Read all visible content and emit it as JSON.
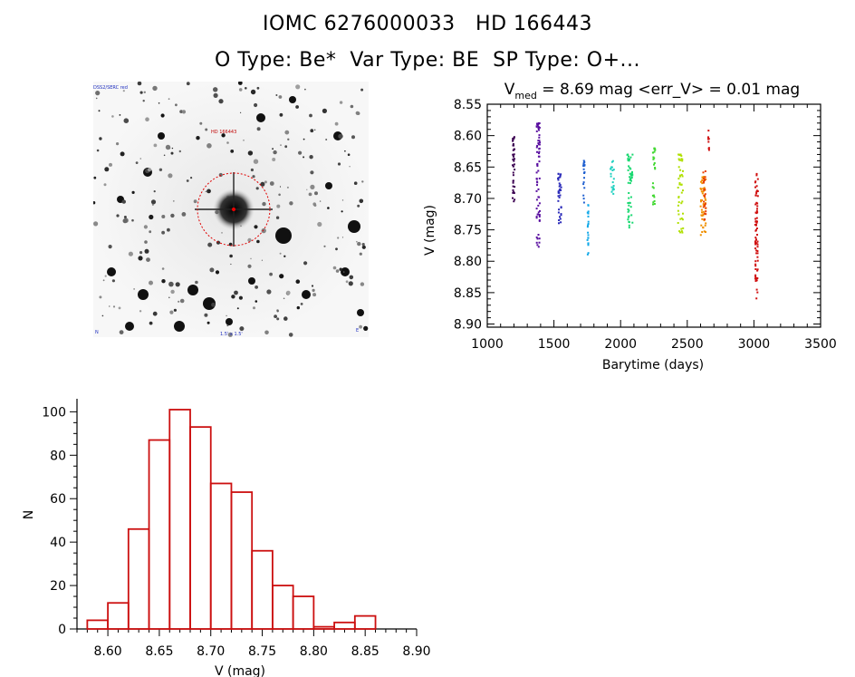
{
  "header": {
    "line1": "IOMC 6276000033   HD 166443",
    "line2": "O Type: Be*  Var Type: BE  SP Type: O+..."
  },
  "sky_image": {
    "label_top_left": "DSS2/SERC red",
    "label_target": "HD 166443",
    "label_bottom_center": "1.5' x 1.5'",
    "label_bottom_left": "N",
    "label_bottom_right": "E"
  },
  "chart_data": [
    {
      "type": "scatter",
      "title_prefix": "V",
      "title_sub": "med",
      "title_rest": " = 8.69 mag <err_V> = 0.01 mag",
      "xlabel": "Barytime (days)",
      "ylabel": "V (mag)",
      "xlim": [
        1000,
        3500
      ],
      "ylim": [
        8.905,
        8.55
      ],
      "xticks": [
        1000,
        1500,
        2000,
        2500,
        3000,
        3500
      ],
      "yticks": [
        8.55,
        8.6,
        8.65,
        8.7,
        8.75,
        8.8,
        8.85,
        8.9
      ],
      "ytick_labels": [
        "8.55",
        "8.60",
        "8.65",
        "8.70",
        "8.75",
        "8.80",
        "8.85",
        "8.90"
      ],
      "clusters": [
        {
          "x": [
            1190,
            1205
          ],
          "y": [
            8.6,
            8.71
          ],
          "color": "#3a0050",
          "n": 40
        },
        {
          "x": [
            1370,
            1395
          ],
          "y": [
            8.58,
            8.785
          ],
          "color": "#5a10a0",
          "n": 70
        },
        {
          "x": [
            1530,
            1555
          ],
          "y": [
            8.66,
            8.74
          ],
          "color": "#2828b8",
          "n": 35
        },
        {
          "x": [
            1720,
            1730
          ],
          "y": [
            8.64,
            8.71
          ],
          "color": "#2060d0",
          "n": 20
        },
        {
          "x": [
            1750,
            1760
          ],
          "y": [
            8.71,
            8.8
          ],
          "color": "#10a8e8",
          "n": 20
        },
        {
          "x": [
            1925,
            1950
          ],
          "y": [
            8.64,
            8.7
          ],
          "color": "#20d0c0",
          "n": 20
        },
        {
          "x": [
            2050,
            2090
          ],
          "y": [
            8.63,
            8.76
          ],
          "color": "#18d870",
          "n": 50
        },
        {
          "x": [
            2240,
            2260
          ],
          "y": [
            8.62,
            8.71
          ],
          "color": "#40d830",
          "n": 25
        },
        {
          "x": [
            2430,
            2470
          ],
          "y": [
            8.63,
            8.76
          ],
          "color": "#b0e000",
          "n": 45
        },
        {
          "x": [
            2600,
            2640
          ],
          "y": [
            8.665,
            8.76
          ],
          "color": "#f09000",
          "n": 50
        },
        {
          "x": [
            2620,
            2640
          ],
          "y": [
            8.655,
            8.74
          ],
          "color": "#e84000",
          "n": 25
        },
        {
          "x": [
            2655,
            2665
          ],
          "y": [
            8.59,
            8.63
          ],
          "color": "#d01010",
          "n": 8
        },
        {
          "x": [
            3010,
            3030
          ],
          "y": [
            8.66,
            8.86
          ],
          "color": "#d01010",
          "n": 70
        }
      ]
    },
    {
      "type": "bar",
      "xlabel": "V (mag)",
      "ylabel": "N",
      "xlim": [
        8.57,
        8.9
      ],
      "ylim": [
        0,
        106
      ],
      "bin_width": 0.02,
      "bin_starts": [
        8.58,
        8.6,
        8.62,
        8.64,
        8.66,
        8.68,
        8.7,
        8.72,
        8.74,
        8.76,
        8.78,
        8.8,
        8.82,
        8.84
      ],
      "values": [
        4,
        12,
        46,
        87,
        101,
        93,
        67,
        63,
        36,
        20,
        15,
        1,
        3,
        6
      ],
      "xticks": [
        8.6,
        8.65,
        8.7,
        8.75,
        8.8,
        8.85,
        8.9
      ],
      "xtick_labels": [
        "8.60",
        "8.65",
        "8.70",
        "8.75",
        "8.80",
        "8.85",
        "8.90"
      ],
      "yticks": [
        0,
        20,
        40,
        60,
        80,
        100
      ],
      "bar_color": "#cc1010"
    }
  ]
}
